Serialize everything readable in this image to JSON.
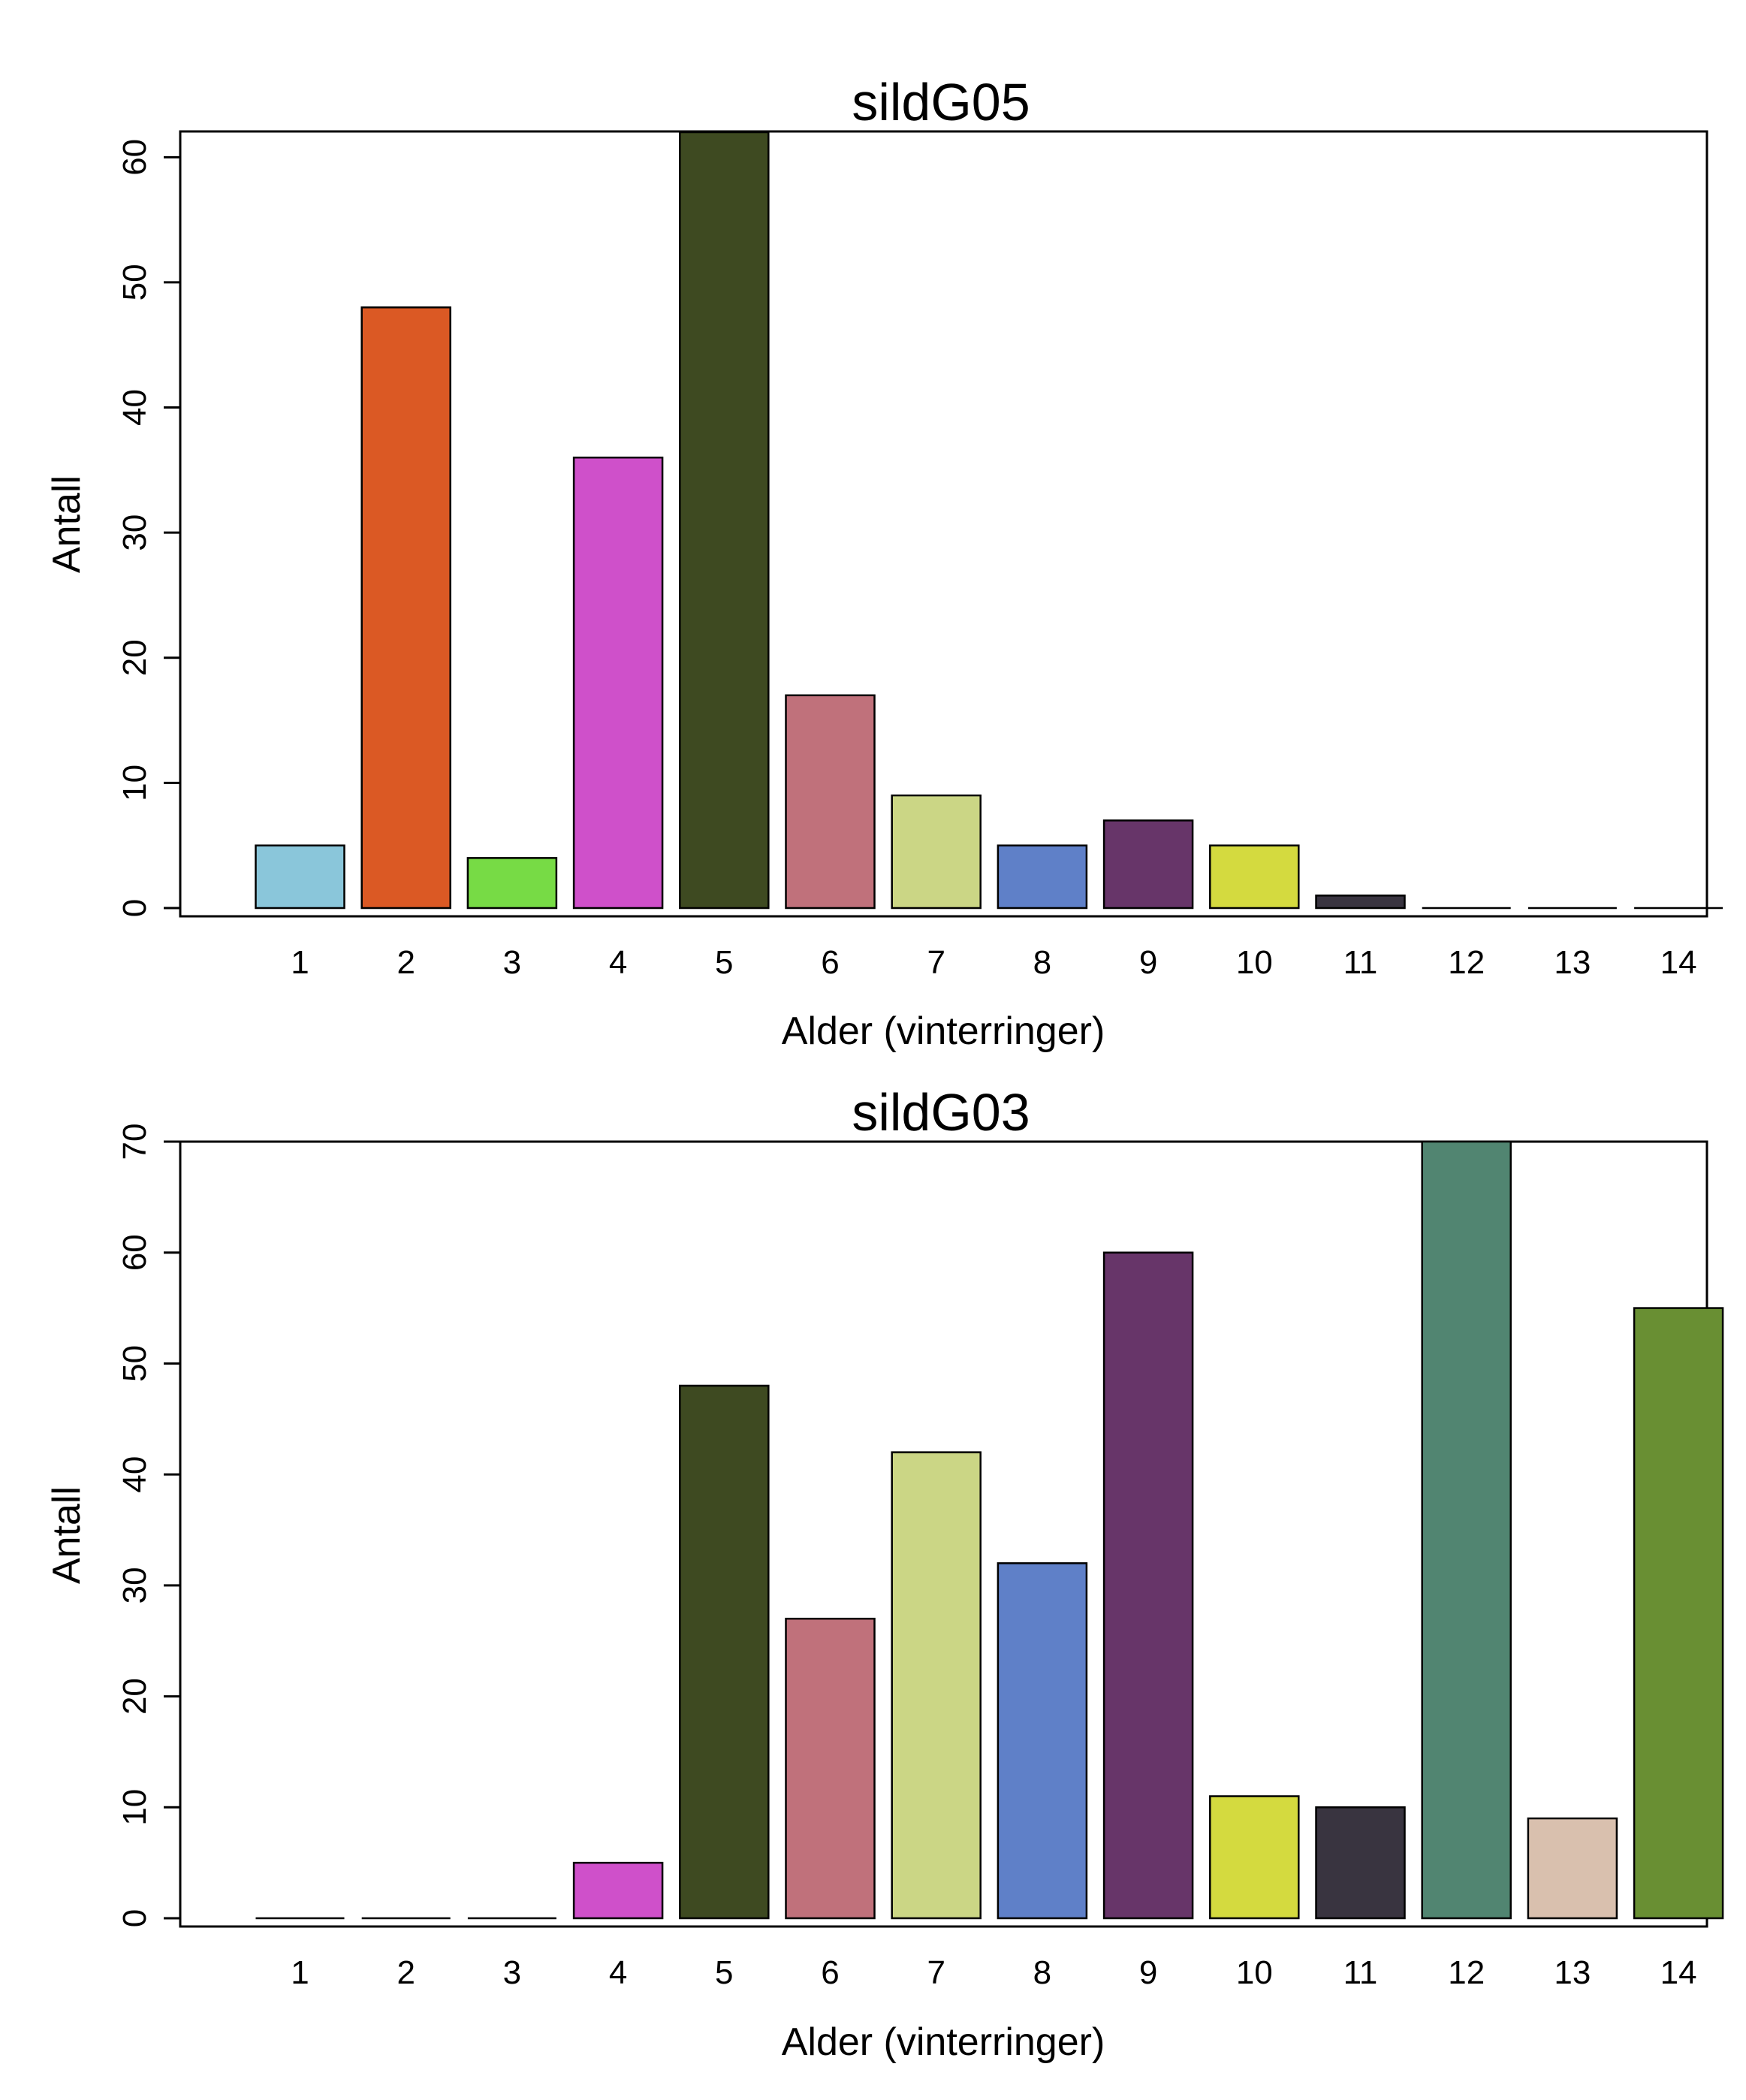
{
  "chart_data": [
    {
      "type": "bar",
      "title": "sildG05",
      "xlabel": "Alder (vinterringer)",
      "ylabel": "Antall",
      "categories": [
        "1",
        "2",
        "3",
        "4",
        "5",
        "6",
        "7",
        "8",
        "9",
        "10",
        "11",
        "12",
        "13",
        "14"
      ],
      "values": [
        5,
        48,
        4,
        36,
        62,
        17,
        9,
        5,
        7,
        5,
        1,
        0,
        0,
        0
      ],
      "ylim": [
        0,
        62
      ],
      "yticks": [
        0,
        10,
        20,
        30,
        40,
        50,
        60
      ],
      "colors": [
        "#8ac6da",
        "#db5924",
        "#77db45",
        "#cf50ca",
        "#3e4a21",
        "#c0717b",
        "#cbd685",
        "#5f80c8",
        "#673569",
        "#d4da3f",
        "#393440",
        "#518571",
        "#d9c0ae",
        "#698f33"
      ],
      "grid": false
    },
    {
      "type": "bar",
      "title": "sildG03",
      "xlabel": "Alder (vinterringer)",
      "ylabel": "Antall",
      "categories": [
        "1",
        "2",
        "3",
        "4",
        "5",
        "6",
        "7",
        "8",
        "9",
        "10",
        "11",
        "12",
        "13",
        "14"
      ],
      "values": [
        0,
        0,
        0,
        5,
        48,
        27,
        42,
        32,
        60,
        11,
        10,
        70,
        9,
        55
      ],
      "ylim": [
        0,
        70
      ],
      "yticks": [
        0,
        10,
        20,
        30,
        40,
        50,
        60,
        70
      ],
      "colors": [
        "#8ac6da",
        "#db5924",
        "#77db45",
        "#cf50ca",
        "#3e4a21",
        "#c0717b",
        "#cbd685",
        "#5f80c8",
        "#673569",
        "#d4da3f",
        "#393440",
        "#518571",
        "#d9c0ae",
        "#698f33"
      ],
      "grid": false
    }
  ]
}
